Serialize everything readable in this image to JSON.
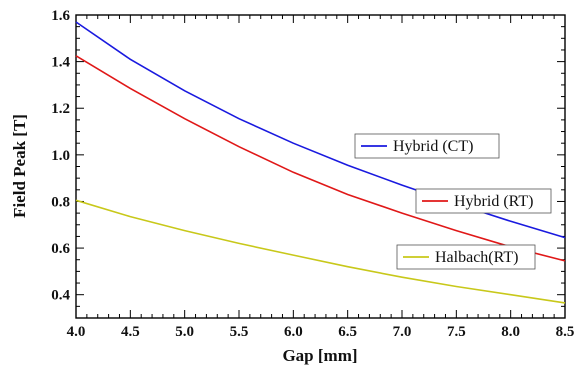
{
  "chart_data": {
    "type": "line",
    "xlabel": "Gap [mm]",
    "ylabel": "Field Peak [T]",
    "xlim": [
      4.0,
      8.5
    ],
    "ylim": [
      0.3,
      1.6
    ],
    "xticks": [
      4.0,
      4.5,
      5.0,
      5.5,
      6.0,
      6.5,
      7.0,
      7.5,
      8.0,
      8.5
    ],
    "xtick_labels": [
      "4.0",
      "4.5",
      "5.0",
      "5.5",
      "6.0",
      "6.5",
      "7.0",
      "7.5",
      "8.0",
      "8.5"
    ],
    "yticks": [
      0.4,
      0.6,
      0.8,
      1.0,
      1.2,
      1.4,
      1.6
    ],
    "ytick_labels": [
      "0.4",
      "0.6",
      "0.8",
      "1.0",
      "1.2",
      "1.4",
      "1.6"
    ],
    "grid": false,
    "legend_placement": "inline labels",
    "x": [
      4.0,
      4.5,
      5.0,
      5.5,
      6.0,
      6.5,
      7.0,
      7.5,
      8.0,
      8.5
    ],
    "series": [
      {
        "name": "Hybrid (CT)",
        "color": "#1a1adf",
        "values": [
          1.57,
          1.41,
          1.275,
          1.155,
          1.05,
          0.955,
          0.87,
          0.79,
          0.715,
          0.645
        ]
      },
      {
        "name": "Hybrid (RT)",
        "color": "#e01818",
        "values": [
          1.425,
          1.285,
          1.155,
          1.035,
          0.925,
          0.83,
          0.75,
          0.675,
          0.605,
          0.545
        ]
      },
      {
        "name": "Halbach(RT)",
        "color": "#c8c81a",
        "values": [
          0.805,
          0.735,
          0.675,
          0.62,
          0.57,
          0.52,
          0.475,
          0.435,
          0.4,
          0.365
        ]
      }
    ]
  }
}
